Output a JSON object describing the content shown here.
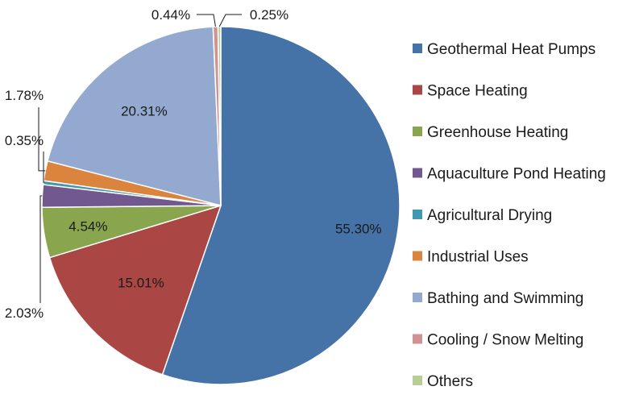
{
  "chart_data": {
    "type": "pie",
    "title": "",
    "start": "12 o'clock",
    "direction": "clockwise",
    "legend_position": "right",
    "slices": [
      {
        "name": "Geothermal Heat Pumps",
        "value": 55.3,
        "label": "55.30%",
        "color": "#4572A7",
        "label_style": "inside"
      },
      {
        "name": "Space Heating",
        "value": 15.01,
        "label": "15.01%",
        "color": "#AA4643",
        "label_style": "inside"
      },
      {
        "name": "Greenhouse Heating",
        "value": 4.54,
        "label": "4.54%",
        "color": "#89A54E",
        "label_style": "inside"
      },
      {
        "name": "Aquaculture Pond Heating",
        "value": 2.03,
        "label": "2.03%",
        "color": "#71588F",
        "label_style": "outside"
      },
      {
        "name": "Agricultural Drying",
        "value": 0.35,
        "label": "0.35%",
        "color": "#4198AF",
        "label_style": "outside"
      },
      {
        "name": "Industrial Uses",
        "value": 1.78,
        "label": "1.78%",
        "color": "#DB843D",
        "label_style": "outside"
      },
      {
        "name": "Bathing and Swimming",
        "value": 20.31,
        "label": "20.31%",
        "color": "#93A9CF",
        "label_style": "inside"
      },
      {
        "name": "Cooling / Snow Melting",
        "value": 0.44,
        "label": "0.44%",
        "color": "#D19392",
        "label_style": "outside"
      },
      {
        "name": "Others",
        "value": 0.25,
        "label": "0.25%",
        "color": "#B9CD96",
        "label_style": "outside"
      }
    ]
  }
}
